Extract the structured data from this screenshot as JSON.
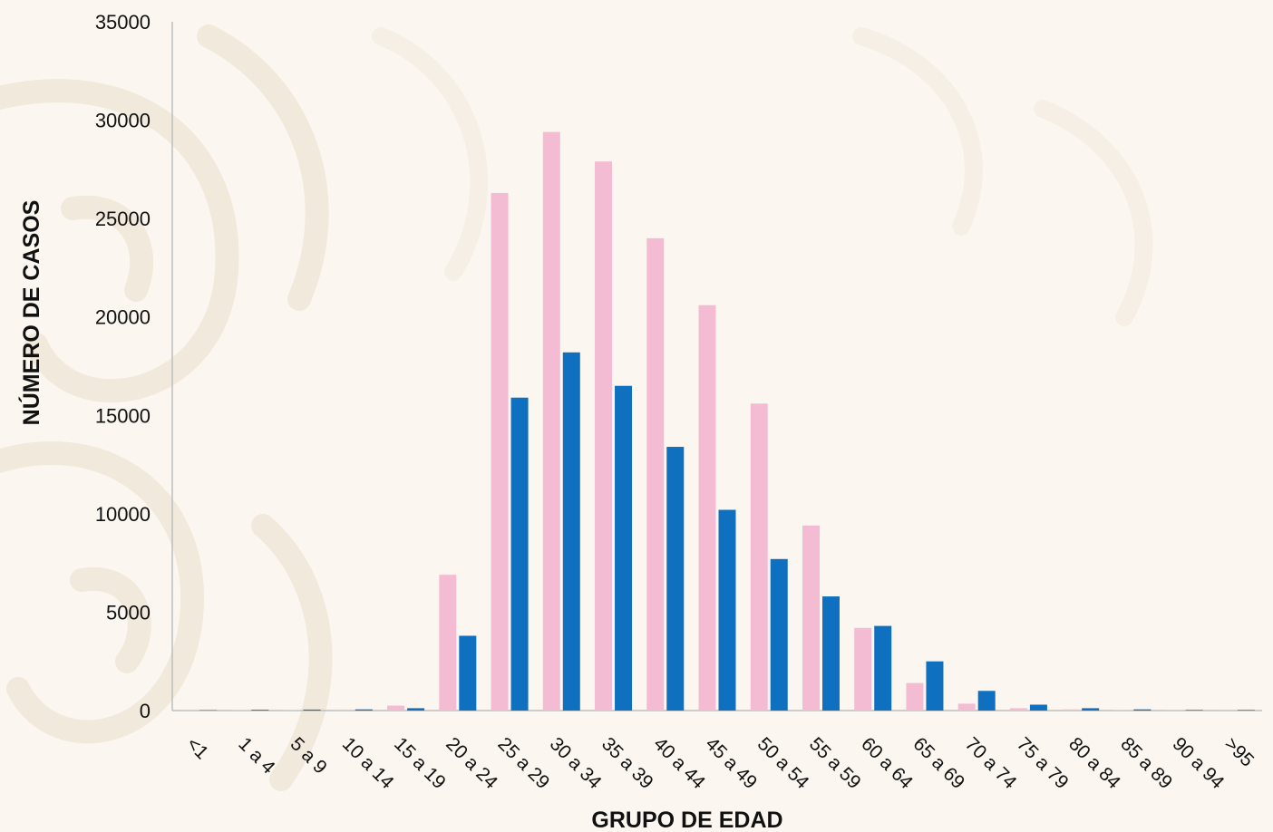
{
  "chart_data": {
    "type": "bar",
    "title": "",
    "xlabel": "GRUPO DE EDAD",
    "ylabel": "NÚMERO DE CASOS",
    "ylim": [
      0,
      35000
    ],
    "yticks": [
      0,
      5000,
      10000,
      15000,
      20000,
      25000,
      30000,
      35000
    ],
    "grid": false,
    "legend": "none",
    "categories": [
      "<1",
      "1 a 4",
      "5 a 9",
      "10 a 14",
      "15 a 19",
      "20 a 24",
      "25 a 29",
      "30 a 34",
      "35 a 39",
      "40 a 44",
      "45 a 49",
      "50 a 54",
      "55 a 59",
      "60 a 64",
      "65 a 69",
      "70 a 74",
      "75 a 79",
      "80 a 84",
      "85 a 89",
      "90 a 94",
      ">95"
    ],
    "series": [
      {
        "color": "#f4bcd3",
        "values": [
          10,
          20,
          30,
          50,
          250,
          6900,
          26300,
          29400,
          27900,
          24000,
          20600,
          15600,
          9400,
          4200,
          1400,
          350,
          120,
          60,
          30,
          15,
          10
        ]
      },
      {
        "color": "#0f70c0",
        "values": [
          20,
          40,
          50,
          60,
          120,
          3800,
          15900,
          18200,
          16500,
          13400,
          10200,
          7700,
          5800,
          4300,
          2500,
          1000,
          300,
          120,
          60,
          30,
          30
        ]
      }
    ]
  }
}
